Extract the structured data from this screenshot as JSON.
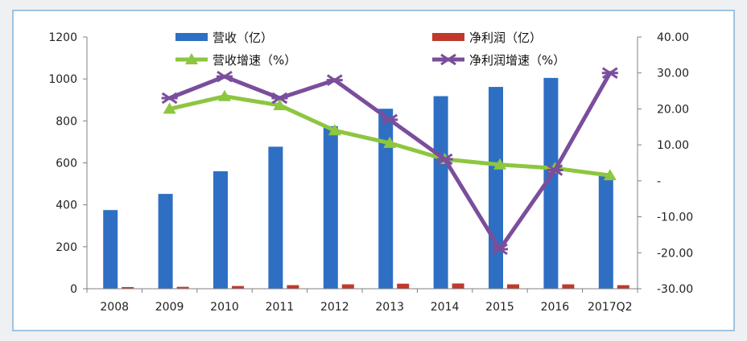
{
  "chart_data": {
    "type": "bar",
    "categories": [
      "2008",
      "2009",
      "2010",
      "2011",
      "2012",
      "2013",
      "2014",
      "2015",
      "2016",
      "2017Q2"
    ],
    "series": [
      {
        "name": "营收（亿）",
        "type": "bar",
        "axis": "left",
        "color": "#2e6fc4",
        "values": [
          375,
          452,
          560,
          677,
          775,
          858,
          918,
          962,
          1005,
          540
        ]
      },
      {
        "name": "净利润（亿）",
        "type": "bar",
        "axis": "left",
        "color": "#c0392b",
        "values": [
          8,
          9,
          13,
          17,
          21,
          24,
          25,
          21,
          21,
          17
        ]
      },
      {
        "name": "营收增速（%）",
        "type": "line",
        "axis": "right",
        "color": "#8dc63f",
        "values": [
          null,
          20,
          23.5,
          21,
          14,
          10.5,
          6,
          4.5,
          3.5,
          1.5
        ]
      },
      {
        "name": "净利润增速（%）",
        "type": "line",
        "axis": "right",
        "color": "#7a4e9c",
        "values": [
          null,
          23,
          29,
          23,
          28,
          17,
          6,
          -19,
          3,
          30
        ]
      }
    ],
    "y_left": {
      "min": 0,
      "max": 1200,
      "ticks": [
        "0",
        "200",
        "400",
        "600",
        "800",
        "1000",
        "1200"
      ]
    },
    "y_right": {
      "min": -30,
      "max": 40,
      "ticks": [
        "-30.00",
        "-20.00",
        "-10.00",
        "-",
        "10.00",
        "20.00",
        "30.00",
        "40.00"
      ]
    },
    "grid": false,
    "legend": "top"
  }
}
